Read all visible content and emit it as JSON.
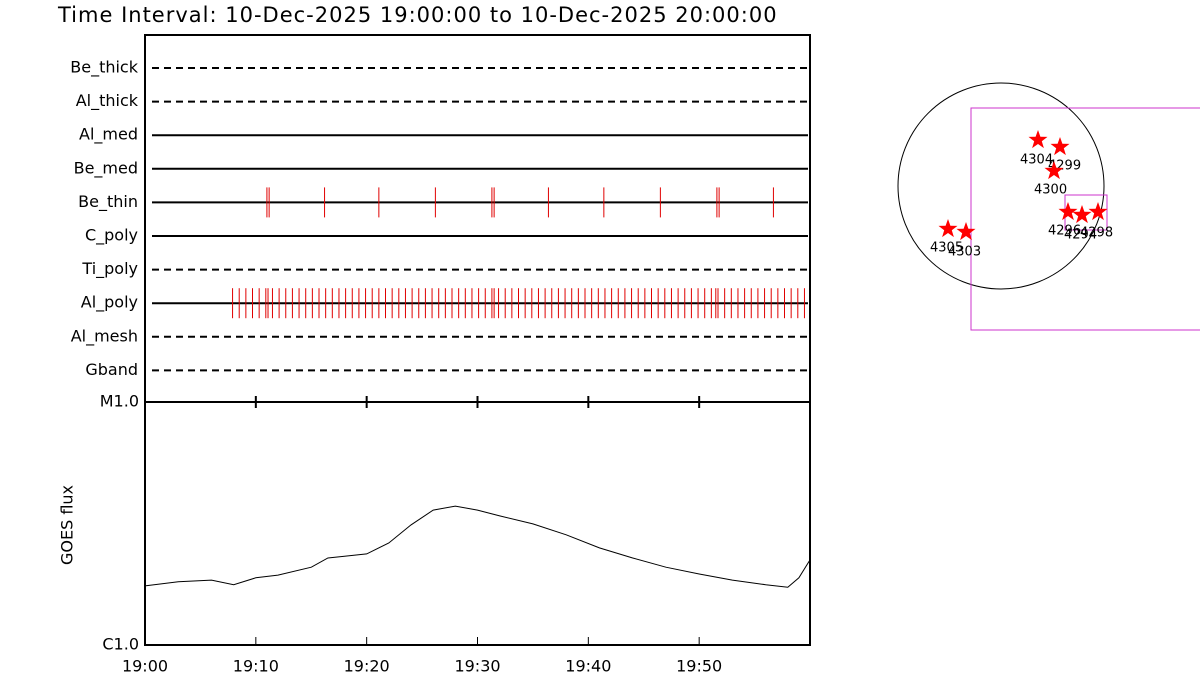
{
  "title": "Time Interval: 10-Dec-2025 19:00:00 to 10-Dec-2025 20:00:00",
  "timeline": {
    "event_color": "#e00000",
    "rows": [
      {
        "name": "Be_thick",
        "line": "dashed"
      },
      {
        "name": "Al_thick",
        "line": "dashed"
      },
      {
        "name": "Al_med",
        "line": "solid"
      },
      {
        "name": "Be_med",
        "line": "solid"
      },
      {
        "name": "Be_thin",
        "line": "solid",
        "times": [
          11.0,
          11.2,
          16.2,
          21.1,
          26.2,
          31.3,
          31.5,
          36.4,
          41.4,
          46.5,
          51.6,
          51.8,
          56.7
        ]
      },
      {
        "name": "C_poly",
        "line": "solid"
      },
      {
        "name": "Ti_poly",
        "line": "dashed"
      },
      {
        "name": "Al_poly",
        "line": "solid",
        "times": [
          7.9,
          8.5,
          9.1,
          9.7,
          10.3,
          10.9,
          11.1,
          11.5,
          12.1,
          12.7,
          13.3,
          13.9,
          14.5,
          15.1,
          15.7,
          16.3,
          16.9,
          17.5,
          18.1,
          18.7,
          19.3,
          19.9,
          20.5,
          21.1,
          21.7,
          22.3,
          22.9,
          23.5,
          24.1,
          24.7,
          25.3,
          25.9,
          26.5,
          27.1,
          27.7,
          28.3,
          28.9,
          29.5,
          30.1,
          30.7,
          31.3,
          31.5,
          31.9,
          32.5,
          33.1,
          33.7,
          34.3,
          34.9,
          35.5,
          36.1,
          36.7,
          37.3,
          37.9,
          38.5,
          39.1,
          39.7,
          40.3,
          40.9,
          41.5,
          42.1,
          42.7,
          43.3,
          43.9,
          44.5,
          45.1,
          45.7,
          46.3,
          46.9,
          47.5,
          48.1,
          48.7,
          49.3,
          49.9,
          50.5,
          51.1,
          51.5,
          51.7,
          52.3,
          52.9,
          53.5,
          54.1,
          54.7,
          55.3,
          55.9,
          56.5,
          57.1,
          57.7,
          58.3,
          58.9,
          59.5
        ]
      },
      {
        "name": "Al_mesh",
        "line": "dashed"
      },
      {
        "name": "Gband",
        "line": "dashed"
      }
    ]
  },
  "chart_data": {
    "type": "line",
    "y_label": "GOES flux",
    "color": "#000000",
    "log_scale": true,
    "x": [
      0,
      3,
      6,
      8,
      10,
      12,
      15,
      16.5,
      18,
      20,
      22,
      24,
      26,
      28,
      30,
      32,
      35,
      38,
      41,
      44,
      47,
      50,
      53,
      56,
      58,
      59,
      60
    ],
    "values": [
      1.75e-06,
      1.82e-06,
      1.85e-06,
      1.77e-06,
      1.89e-06,
      1.94e-06,
      2.09e-06,
      2.28e-06,
      2.32e-06,
      2.37e-06,
      2.63e-06,
      3.12e-06,
      3.59e-06,
      3.73e-06,
      3.59e-06,
      3.4e-06,
      3.15e-06,
      2.84e-06,
      2.51e-06,
      2.28e-06,
      2.09e-06,
      1.96e-06,
      1.85e-06,
      1.77e-06,
      1.73e-06,
      1.89e-06,
      2.24e-06
    ],
    "xlim": [
      0,
      60
    ],
    "xticks": [
      {
        "value": 0,
        "label": "19:00"
      },
      {
        "value": 10,
        "label": "19:10"
      },
      {
        "value": 20,
        "label": "19:20"
      },
      {
        "value": 30,
        "label": "19:30"
      },
      {
        "value": 40,
        "label": "19:40"
      },
      {
        "value": 50,
        "label": "19:50"
      }
    ],
    "ylim": [
      1e-06,
      1e-05
    ],
    "yticks": [
      {
        "value": 1e-06,
        "label": "C1.0"
      },
      {
        "value": 1e-05,
        "label": "M1.0"
      }
    ]
  },
  "solar_map": {
    "star_color": "#ff0000",
    "regions": [
      {
        "label": "4304"
      },
      {
        "label": "4299"
      },
      {
        "label": "4300"
      },
      {
        "label": "4296"
      },
      {
        "label": "4294"
      },
      {
        "label": "4298"
      },
      {
        "label": "4305"
      },
      {
        "label": "4303"
      }
    ]
  }
}
